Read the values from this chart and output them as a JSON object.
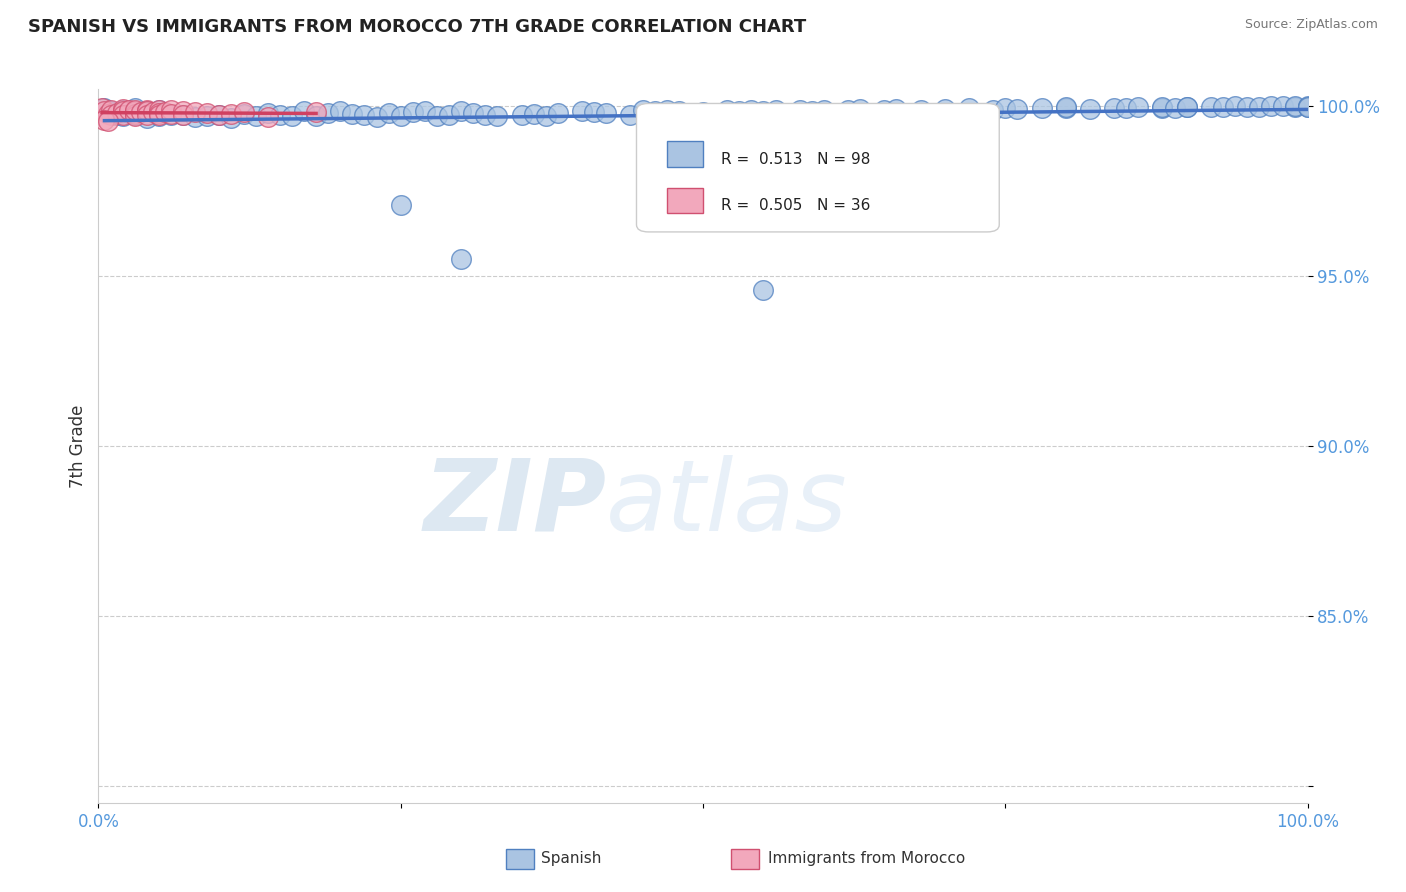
{
  "title": "SPANISH VS IMMIGRANTS FROM MOROCCO 7TH GRADE CORRELATION CHART",
  "source": "Source: ZipAtlas.com",
  "xlabel_bottom": "Spanish",
  "xlabel_bottom2": "Immigrants from Morocco",
  "ylabel": "7th Grade",
  "xlim": [
    0.0,
    1.0
  ],
  "ylim": [
    0.795,
    1.005
  ],
  "yticks": [
    0.8,
    0.85,
    0.9,
    0.95,
    1.0
  ],
  "ytick_labels": [
    "",
    "85.0%",
    "90.0%",
    "95.0%",
    "100.0%"
  ],
  "xticks": [
    0.0,
    0.25,
    0.5,
    0.75,
    1.0
  ],
  "xtick_labels": [
    "0.0%",
    "",
    "",
    "",
    "100.0%"
  ],
  "blue_r": "0.513",
  "blue_n": "98",
  "pink_r": "0.505",
  "pink_n": "36",
  "blue_color": "#aac4e2",
  "pink_color": "#f2a8bc",
  "blue_edge_color": "#5080c0",
  "pink_edge_color": "#d05070",
  "trend_line_color_blue": "#4472c4",
  "trend_line_color_pink": "#d04060",
  "grid_color": "#cccccc",
  "blue_scatter_x": [
    0.005,
    0.01,
    0.015,
    0.02,
    0.02,
    0.025,
    0.03,
    0.03,
    0.04,
    0.04,
    0.05,
    0.05,
    0.06,
    0.07,
    0.08,
    0.09,
    0.1,
    0.11,
    0.12,
    0.13,
    0.14,
    0.15,
    0.16,
    0.17,
    0.18,
    0.19,
    0.2,
    0.21,
    0.22,
    0.23,
    0.24,
    0.25,
    0.26,
    0.27,
    0.28,
    0.29,
    0.3,
    0.31,
    0.32,
    0.33,
    0.35,
    0.36,
    0.37,
    0.38,
    0.4,
    0.41,
    0.42,
    0.44,
    0.45,
    0.46,
    0.47,
    0.48,
    0.5,
    0.52,
    0.53,
    0.54,
    0.55,
    0.56,
    0.58,
    0.59,
    0.6,
    0.62,
    0.63,
    0.65,
    0.66,
    0.68,
    0.7,
    0.72,
    0.74,
    0.75,
    0.76,
    0.78,
    0.8,
    0.8,
    0.82,
    0.84,
    0.85,
    0.86,
    0.88,
    0.88,
    0.89,
    0.9,
    0.9,
    0.92,
    0.93,
    0.94,
    0.95,
    0.96,
    0.97,
    0.98,
    0.99,
    0.99,
    1.0,
    1.0,
    1.0,
    0.3,
    0.25,
    0.55
  ],
  "blue_scatter_y": [
    0.9995,
    0.9985,
    0.9975,
    0.999,
    0.997,
    0.998,
    0.9995,
    0.9975,
    0.9985,
    0.9965,
    0.999,
    0.997,
    0.9975,
    0.9975,
    0.9968,
    0.997,
    0.9975,
    0.9965,
    0.9978,
    0.9972,
    0.998,
    0.9975,
    0.9972,
    0.9985,
    0.997,
    0.998,
    0.9985,
    0.9978,
    0.9975,
    0.9968,
    0.998,
    0.9972,
    0.9982,
    0.9985,
    0.997,
    0.9975,
    0.9985,
    0.998,
    0.9975,
    0.9972,
    0.9975,
    0.9978,
    0.9972,
    0.998,
    0.9985,
    0.9982,
    0.998,
    0.9975,
    0.9988,
    0.9985,
    0.999,
    0.9985,
    0.9982,
    0.9988,
    0.9985,
    0.999,
    0.9985,
    0.9988,
    0.999,
    0.9985,
    0.999,
    0.9988,
    0.9992,
    0.999,
    0.9992,
    0.9988,
    0.9992,
    0.9994,
    0.999,
    0.9994,
    0.9992,
    0.9996,
    0.9994,
    0.9998,
    0.9992,
    0.9996,
    0.9994,
    0.9998,
    0.9994,
    0.9998,
    0.9996,
    0.9998,
    0.9999,
    0.9998,
    0.9999,
    1.0,
    0.9998,
    0.9999,
    1.0,
    1.0,
    0.9998,
    1.0,
    0.9998,
    1.0,
    0.9999,
    0.955,
    0.971,
    0.946
  ],
  "pink_scatter_x": [
    0.003,
    0.005,
    0.008,
    0.01,
    0.01,
    0.015,
    0.02,
    0.02,
    0.02,
    0.025,
    0.03,
    0.03,
    0.03,
    0.03,
    0.035,
    0.04,
    0.04,
    0.04,
    0.045,
    0.05,
    0.05,
    0.05,
    0.055,
    0.06,
    0.06,
    0.07,
    0.07,
    0.08,
    0.09,
    0.1,
    0.11,
    0.12,
    0.14,
    0.18,
    0.005,
    0.008
  ],
  "pink_scatter_y": [
    0.9995,
    0.9985,
    0.9978,
    0.999,
    0.9975,
    0.998,
    0.9992,
    0.9985,
    0.9975,
    0.999,
    0.9985,
    0.9978,
    0.9972,
    0.9988,
    0.9982,
    0.999,
    0.9985,
    0.9975,
    0.9982,
    0.999,
    0.998,
    0.9975,
    0.9982,
    0.9988,
    0.9978,
    0.9985,
    0.9975,
    0.9982,
    0.998,
    0.9975,
    0.9978,
    0.9982,
    0.9968,
    0.9982,
    0.996,
    0.9955
  ]
}
